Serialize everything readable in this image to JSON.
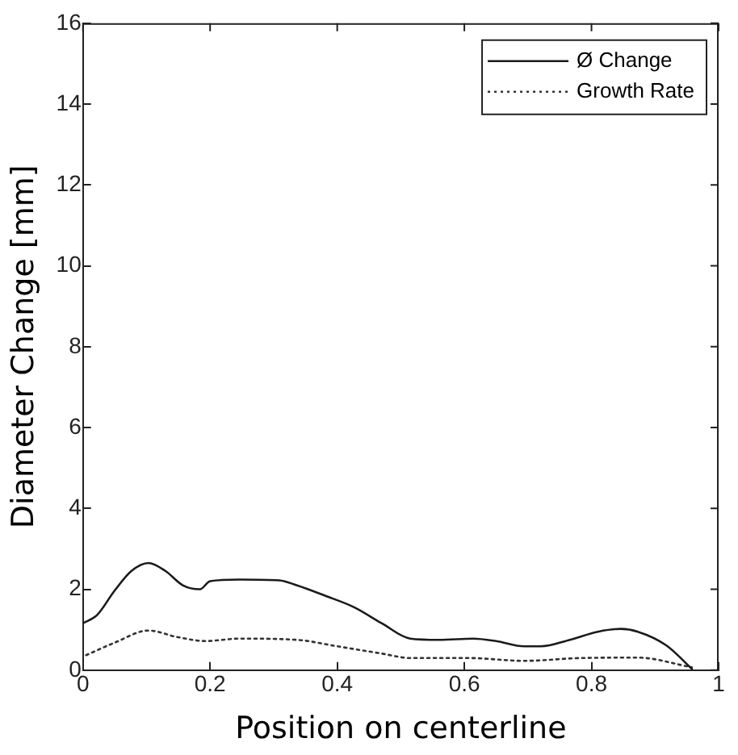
{
  "chart_data": {
    "type": "line",
    "xlabel": "Position on centerline",
    "ylabel": "Diameter Change [mm]",
    "xlim": [
      0,
      1
    ],
    "xticks": [
      0,
      0.2,
      0.4,
      0.6,
      0.8,
      1
    ],
    "ylim": [
      0,
      16
    ],
    "yticks": [
      0,
      2,
      4,
      6,
      8,
      10,
      12,
      14,
      16
    ],
    "grid": false,
    "legend": "top right",
    "marker": "none",
    "series": [
      {
        "name": "Ø Change",
        "color": "#1a1a1a",
        "line_style": "solid",
        "x": [
          0,
          0.022,
          0.05,
          0.076,
          0.103,
          0.13,
          0.157,
          0.184,
          0.2,
          0.246,
          0.309,
          0.336,
          0.381,
          0.426,
          0.47,
          0.515,
          0.56,
          0.614,
          0.65,
          0.694,
          0.72,
          0.766,
          0.81,
          0.846,
          0.873,
          0.918,
          0.958
        ],
        "values": [
          1.16,
          1.36,
          1.97,
          2.45,
          2.65,
          2.45,
          2.1,
          2.0,
          2.2,
          2.24,
          2.22,
          2.1,
          1.84,
          1.56,
          1.16,
          0.78,
          0.75,
          0.78,
          0.72,
          0.59,
          0.59,
          0.75,
          0.95,
          1.02,
          0.95,
          0.61,
          0.03
        ]
      },
      {
        "name": "Growth Rate",
        "color": "#333333",
        "line_style": "dotted",
        "x": [
          0.005,
          0.05,
          0.103,
          0.148,
          0.193,
          0.246,
          0.336,
          0.4,
          0.47,
          0.515,
          0.605,
          0.694,
          0.784,
          0.873,
          0.958
        ],
        "values": [
          0.37,
          0.68,
          0.98,
          0.82,
          0.72,
          0.78,
          0.75,
          0.59,
          0.41,
          0.3,
          0.3,
          0.23,
          0.3,
          0.31,
          0.07
        ]
      }
    ]
  }
}
